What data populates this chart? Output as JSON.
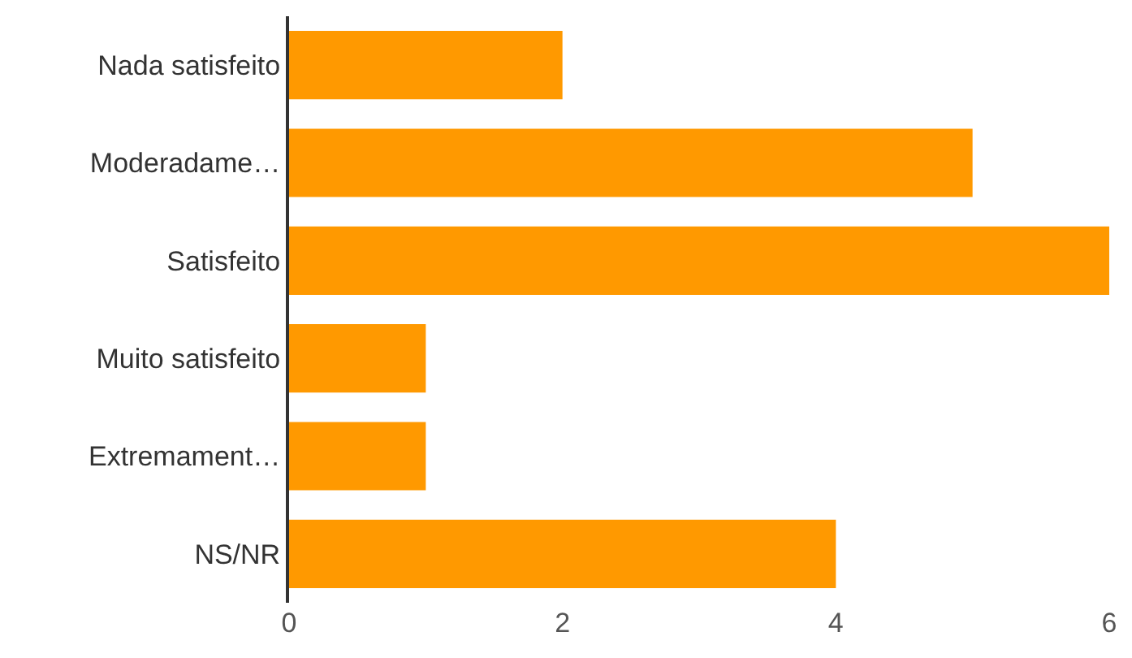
{
  "chart_data": {
    "type": "bar",
    "orientation": "horizontal",
    "categories": [
      "Nada satisfeito",
      "Moderadame…",
      "Satisfeito",
      "Muito satisfeito",
      "Extremament…",
      "NS/NR"
    ],
    "values": [
      2,
      5,
      6,
      1,
      1,
      4
    ],
    "color": "#ff9900",
    "xlim": [
      0,
      6
    ],
    "xticks": [
      0,
      2,
      4,
      6
    ],
    "grid": false,
    "legend": false
  }
}
